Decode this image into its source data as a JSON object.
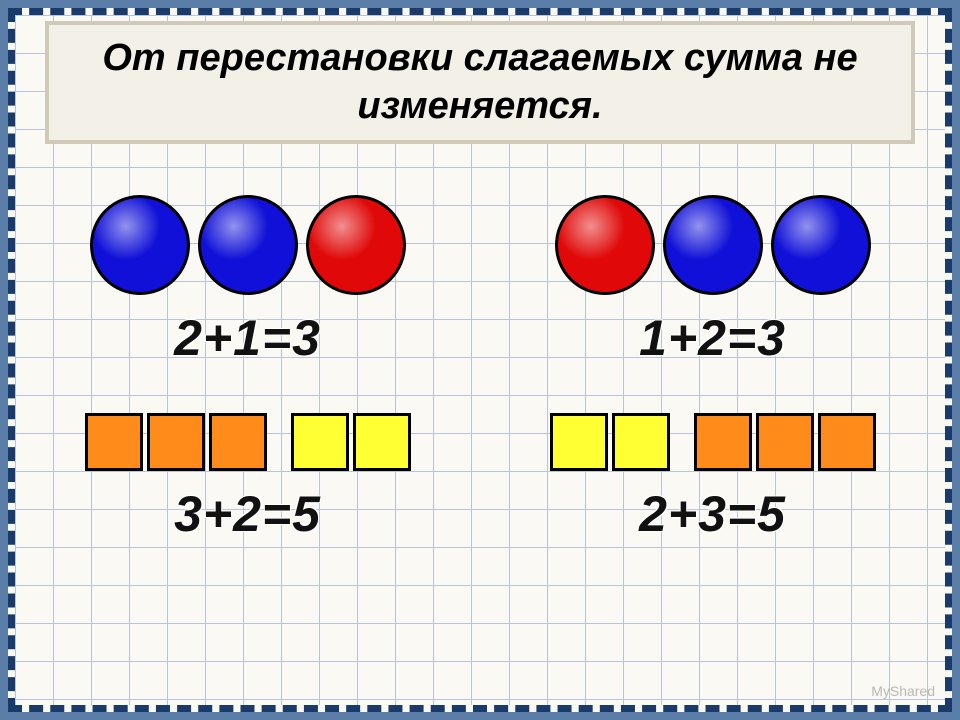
{
  "title": "От перестановки слагаемых сумма не изменяется.",
  "colors": {
    "blue": "#1010d8",
    "red": "#e00808",
    "orange": "#ff8c1a",
    "yellow": "#ffff33",
    "frame_bg": "#5a7ea8",
    "frame_dash": "#1a3a6a",
    "grid_line": "#b8c4d8",
    "grid_bg": "#faf9f3",
    "title_bg": "#f3f0e8",
    "title_border": "#cfcab8"
  },
  "circle_size": 100,
  "square_size": 58,
  "grid_cell": 38,
  "row1": {
    "left": {
      "shapes": [
        {
          "type": "circle",
          "colorKey": "blue"
        },
        {
          "type": "circle",
          "colorKey": "blue"
        },
        {
          "type": "circle",
          "colorKey": "red"
        }
      ],
      "equation": "2+1=3"
    },
    "right": {
      "shapes": [
        {
          "type": "circle",
          "colorKey": "red"
        },
        {
          "type": "circle",
          "colorKey": "blue"
        },
        {
          "type": "circle",
          "colorKey": "blue"
        }
      ],
      "equation": "1+2=3"
    }
  },
  "row2": {
    "left": {
      "shapes": [
        {
          "type": "square",
          "colorKey": "orange"
        },
        {
          "type": "square",
          "colorKey": "orange"
        },
        {
          "type": "square",
          "colorKey": "orange"
        },
        {
          "type": "gap"
        },
        {
          "type": "square",
          "colorKey": "yellow"
        },
        {
          "type": "square",
          "colorKey": "yellow"
        }
      ],
      "equation": "3+2=5"
    },
    "right": {
      "shapes": [
        {
          "type": "square",
          "colorKey": "yellow"
        },
        {
          "type": "square",
          "colorKey": "yellow"
        },
        {
          "type": "gap"
        },
        {
          "type": "square",
          "colorKey": "orange"
        },
        {
          "type": "square",
          "colorKey": "orange"
        },
        {
          "type": "square",
          "colorKey": "orange"
        }
      ],
      "equation": "2+3=5"
    }
  },
  "watermark": "MyShared"
}
